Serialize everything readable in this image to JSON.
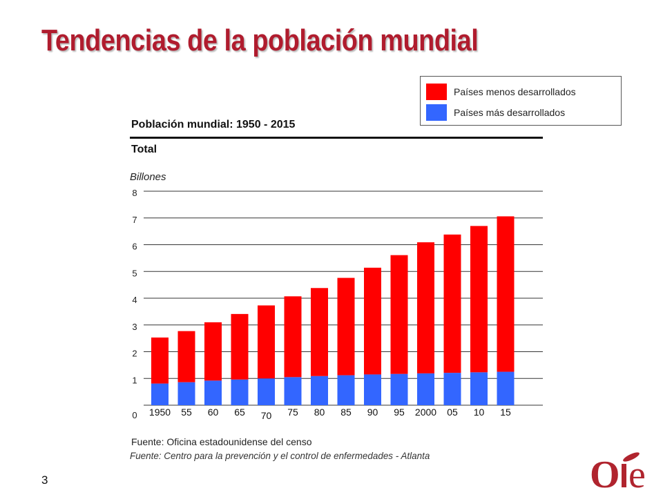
{
  "title": "Tendencias de la población mundial",
  "legend": [
    {
      "label": "Países menos desarrollados",
      "color": "#ff0000"
    },
    {
      "label": "Países más desarrollados",
      "color": "#3366ff"
    }
  ],
  "subtitle": "Población mundial:  1950 - 2015",
  "section_label": "Total",
  "units_label": "Billones",
  "chart_data": {
    "type": "bar",
    "stacked": true,
    "title": "Población mundial:  1950 - 2015",
    "ylabel": "Billones",
    "ylim": [
      0,
      8
    ],
    "yticks": [
      "0",
      "1",
      "2",
      "3",
      "4",
      "5",
      "6",
      "7",
      "8"
    ],
    "grid": true,
    "legend_position": "top-right",
    "categories": [
      "1950",
      "55",
      "60",
      "65",
      "70",
      "75",
      "80",
      "85",
      "90",
      "95",
      "2000",
      "05",
      "10",
      "15"
    ],
    "series": [
      {
        "name": "Países más desarrollados",
        "color": "#3366ff",
        "values": [
          0.81,
          0.86,
          0.92,
          0.96,
          1.0,
          1.05,
          1.09,
          1.12,
          1.15,
          1.17,
          1.19,
          1.21,
          1.23,
          1.25
        ]
      },
      {
        "name": "Países menos desarrollados",
        "color": "#ff0000",
        "values": [
          1.72,
          1.91,
          2.18,
          2.45,
          2.73,
          3.02,
          3.29,
          3.64,
          3.99,
          4.44,
          4.9,
          5.17,
          5.47,
          5.81
        ]
      }
    ]
  },
  "source_1": "Fuente:  Oficina estadounidense del censo",
  "source_2": "Fuente: Centro para la prevención y el control de enfermedades - Atlanta",
  "page_number": "3",
  "logo_text": "OIE",
  "colors": {
    "title": "#b01c2e",
    "logo": "#b0242e"
  }
}
